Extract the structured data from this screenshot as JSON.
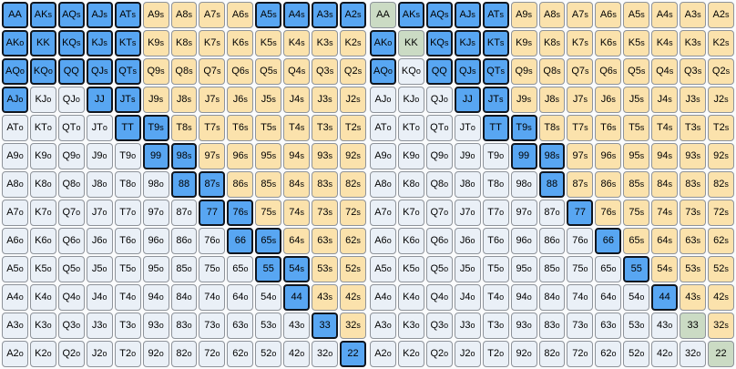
{
  "palette": {
    "selected-fill": "#58a6f2",
    "selected-border": "#10161f",
    "suited-fill": "#fbe2ac",
    "offsuit-fill": "#eaf0f7",
    "special-fill": "#cbdbc4",
    "cell-border": "#8e939a",
    "grid-bg": "#fafbfc",
    "text": "#000000"
  },
  "legend": {
    "b": "selected-blue",
    "t": "suited-unselected-tan",
    "w": "offsuit-unselected-gray",
    "g": "special-green"
  },
  "grids": [
    {
      "name": "left-range-grid",
      "rows": [
        [
          "AA:b",
          "AKs:b",
          "AQs:b",
          "AJs:b",
          "ATs:b",
          "A9s:t",
          "A8s:t",
          "A7s:t",
          "A6s:t",
          "A5s:b",
          "A4s:b",
          "A3s:b",
          "A2s:b"
        ],
        [
          "AKo:b",
          "KK:b",
          "KQs:b",
          "KJs:b",
          "KTs:b",
          "K9s:t",
          "K8s:t",
          "K7s:t",
          "K6s:t",
          "K5s:t",
          "K4s:t",
          "K3s:t",
          "K2s:t"
        ],
        [
          "AQo:b",
          "KQo:b",
          "QQ:b",
          "QJs:b",
          "QTs:b",
          "Q9s:t",
          "Q8s:t",
          "Q7s:t",
          "Q6s:t",
          "Q5s:t",
          "Q4s:t",
          "Q3s:t",
          "Q2s:t"
        ],
        [
          "AJo:b",
          "KJo:w",
          "QJo:w",
          "JJ:b",
          "JTs:b",
          "J9s:t",
          "J8s:t",
          "J7s:t",
          "J6s:t",
          "J5s:t",
          "J4s:t",
          "J3s:t",
          "J2s:t"
        ],
        [
          "ATo:w",
          "KTo:w",
          "QTo:w",
          "JTo:w",
          "TT:b",
          "T9s:b",
          "T8s:t",
          "T7s:t",
          "T6s:t",
          "T5s:t",
          "T4s:t",
          "T3s:t",
          "T2s:t"
        ],
        [
          "A9o:w",
          "K9o:w",
          "Q9o:w",
          "J9o:w",
          "T9o:w",
          "99:b",
          "98s:b",
          "97s:t",
          "96s:t",
          "95s:t",
          "94s:t",
          "93s:t",
          "92s:t"
        ],
        [
          "A8o:w",
          "K8o:w",
          "Q8o:w",
          "J8o:w",
          "T8o:w",
          "98o:w",
          "88:b",
          "87s:b",
          "86s:t",
          "85s:t",
          "84s:t",
          "83s:t",
          "82s:t"
        ],
        [
          "A7o:w",
          "K7o:w",
          "Q7o:w",
          "J7o:w",
          "T7o:w",
          "97o:w",
          "87o:w",
          "77:b",
          "76s:b",
          "75s:t",
          "74s:t",
          "73s:t",
          "72s:t"
        ],
        [
          "A6o:w",
          "K6o:w",
          "Q6o:w",
          "J6o:w",
          "T6o:w",
          "96o:w",
          "86o:w",
          "76o:w",
          "66:b",
          "65s:b",
          "64s:t",
          "63s:t",
          "62s:t"
        ],
        [
          "A5o:w",
          "K5o:w",
          "Q5o:w",
          "J5o:w",
          "T5o:w",
          "95o:w",
          "85o:w",
          "75o:w",
          "65o:w",
          "55:b",
          "54s:b",
          "53s:t",
          "52s:t"
        ],
        [
          "A4o:w",
          "K4o:w",
          "Q4o:w",
          "J4o:w",
          "T4o:w",
          "94o:w",
          "84o:w",
          "74o:w",
          "64o:w",
          "54o:w",
          "44:b",
          "43s:t",
          "42s:t"
        ],
        [
          "A3o:w",
          "K3o:w",
          "Q3o:w",
          "J3o:w",
          "T3o:w",
          "93o:w",
          "83o:w",
          "73o:w",
          "63o:w",
          "53o:w",
          "43o:w",
          "33:b",
          "32s:t"
        ],
        [
          "A2o:w",
          "K2o:w",
          "Q2o:w",
          "J2o:w",
          "T2o:w",
          "92o:w",
          "82o:w",
          "72o:w",
          "62o:w",
          "52o:w",
          "42o:w",
          "32o:w",
          "22:b"
        ]
      ]
    },
    {
      "name": "right-range-grid",
      "rows": [
        [
          "AA:g",
          "AKs:b",
          "AQs:b",
          "AJs:b",
          "ATs:b",
          "A9s:t",
          "A8s:t",
          "A7s:t",
          "A6s:t",
          "A5s:t",
          "A4s:t",
          "A3s:t",
          "A2s:t"
        ],
        [
          "AKo:b",
          "KK:g",
          "KQs:b",
          "KJs:b",
          "KTs:b",
          "K9s:t",
          "K8s:t",
          "K7s:t",
          "K6s:t",
          "K5s:t",
          "K4s:t",
          "K3s:t",
          "K2s:t"
        ],
        [
          "AQo:b",
          "KQo:w",
          "QQ:b",
          "QJs:b",
          "QTs:b",
          "Q9s:t",
          "Q8s:t",
          "Q7s:t",
          "Q6s:t",
          "Q5s:t",
          "Q4s:t",
          "Q3s:t",
          "Q2s:t"
        ],
        [
          "AJo:w",
          "KJo:w",
          "QJo:w",
          "JJ:b",
          "JTs:b",
          "J9s:t",
          "J8s:t",
          "J7s:t",
          "J6s:t",
          "J5s:t",
          "J4s:t",
          "J3s:t",
          "J2s:t"
        ],
        [
          "ATo:w",
          "KTo:w",
          "QTo:w",
          "JTo:w",
          "TT:b",
          "T9s:b",
          "T8s:t",
          "T7s:t",
          "T6s:t",
          "T5s:t",
          "T4s:t",
          "T3s:t",
          "T2s:t"
        ],
        [
          "A9o:w",
          "K9o:w",
          "Q9o:w",
          "J9o:w",
          "T9o:w",
          "99:b",
          "98s:b",
          "97s:t",
          "96s:t",
          "95s:t",
          "94s:t",
          "93s:t",
          "92s:t"
        ],
        [
          "A8o:w",
          "K8o:w",
          "Q8o:w",
          "J8o:w",
          "T8o:w",
          "98o:w",
          "88:b",
          "87s:t",
          "86s:t",
          "85s:t",
          "84s:t",
          "83s:t",
          "82s:t"
        ],
        [
          "A7o:w",
          "K7o:w",
          "Q7o:w",
          "J7o:w",
          "T7o:w",
          "97o:w",
          "87o:w",
          "77:b",
          "76s:t",
          "75s:t",
          "74s:t",
          "73s:t",
          "72s:t"
        ],
        [
          "A6o:w",
          "K6o:w",
          "Q6o:w",
          "J6o:w",
          "T6o:w",
          "96o:w",
          "86o:w",
          "76o:w",
          "66:b",
          "65s:t",
          "64s:t",
          "63s:t",
          "62s:t"
        ],
        [
          "A5o:w",
          "K5o:w",
          "Q5o:w",
          "J5o:w",
          "T5o:w",
          "95o:w",
          "85o:w",
          "75o:w",
          "65o:w",
          "55:b",
          "54s:t",
          "53s:t",
          "52s:t"
        ],
        [
          "A4o:w",
          "K4o:w",
          "Q4o:w",
          "J4o:w",
          "T4o:w",
          "94o:w",
          "84o:w",
          "74o:w",
          "64o:w",
          "54o:w",
          "44:b",
          "43s:t",
          "42s:t"
        ],
        [
          "A3o:w",
          "K3o:w",
          "Q3o:w",
          "J3o:w",
          "T3o:w",
          "93o:w",
          "83o:w",
          "73o:w",
          "63o:w",
          "53o:w",
          "43o:w",
          "33:g",
          "32s:t"
        ],
        [
          "A2o:w",
          "K2o:w",
          "Q2o:w",
          "J2o:w",
          "T2o:w",
          "92o:w",
          "82o:w",
          "72o:w",
          "62o:w",
          "52o:w",
          "42o:w",
          "32o:w",
          "22:g"
        ]
      ]
    }
  ]
}
